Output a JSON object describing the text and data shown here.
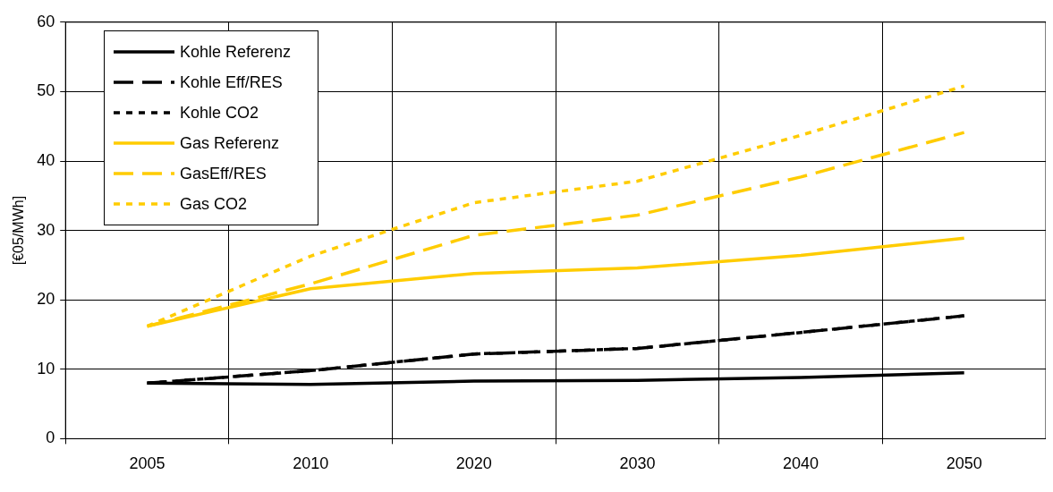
{
  "chart_data": {
    "type": "line",
    "ylabel": "[€05/MWh]",
    "categories": [
      "2005",
      "2010",
      "2020",
      "2030",
      "2040",
      "2050"
    ],
    "series": [
      {
        "name": "Kohle Referenz",
        "color": "#000000",
        "line_style": "solid",
        "values": [
          8.0,
          7.8,
          8.3,
          8.4,
          8.8,
          9.5
        ]
      },
      {
        "name": "Kohle Eff/RES",
        "color": "#000000",
        "line_style": "dashed",
        "values": [
          8.0,
          9.8,
          12.2,
          13.0,
          15.3,
          17.7
        ]
      },
      {
        "name": "Kohle CO2",
        "color": "#000000",
        "line_style": "dotted",
        "values": [
          8.0,
          9.8,
          12.2,
          13.0,
          15.3,
          17.7
        ]
      },
      {
        "name": "Gas Referenz",
        "color": "#ffcc00",
        "line_style": "solid",
        "values": [
          16.2,
          21.6,
          23.8,
          24.6,
          26.4,
          28.9
        ]
      },
      {
        "name": "GasEff/RES",
        "color": "#ffcc00",
        "line_style": "dashed",
        "values": [
          16.2,
          22.3,
          29.3,
          32.2,
          37.7,
          44.1
        ]
      },
      {
        "name": "Gas CO2",
        "color": "#ffcc00",
        "line_style": "dotted",
        "values": [
          16.2,
          26.3,
          34.0,
          37.1,
          43.7,
          50.8
        ]
      }
    ],
    "ylim": [
      0,
      60
    ],
    "yticks": [
      0,
      10,
      20,
      30,
      40,
      50,
      60
    ],
    "grid": true,
    "legend": "top left",
    "marker": "none"
  }
}
